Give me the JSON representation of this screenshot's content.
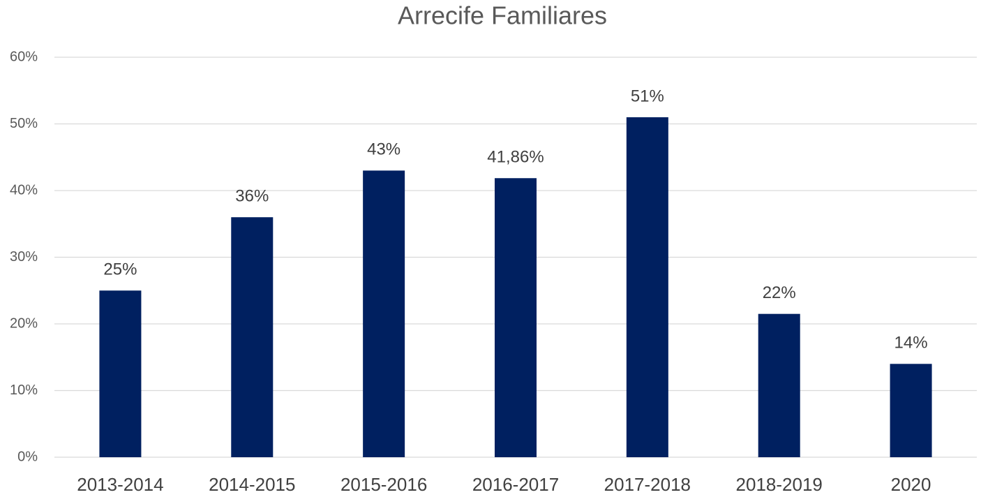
{
  "chart_data": {
    "type": "bar",
    "title": "Arrecife Familiares",
    "categories": [
      "2013-2014",
      "2014-2015",
      "2015-2016",
      "2016-2017",
      "2017-2018",
      "2018-2019",
      "2020"
    ],
    "values": [
      25,
      36,
      43,
      41.86,
      51,
      21.5,
      14
    ],
    "value_labels": [
      "25%",
      "36%",
      "43%",
      "41,86%",
      "51%",
      "22%",
      "14%"
    ],
    "color": "#002060",
    "ylim": [
      0,
      60
    ],
    "yticks": [
      {
        "value": 0,
        "label": "0%"
      },
      {
        "value": 10,
        "label": "10%"
      },
      {
        "value": 20,
        "label": "20%"
      },
      {
        "value": 30,
        "label": "30%"
      },
      {
        "value": 40,
        "label": "40%"
      },
      {
        "value": 50,
        "label": "50%"
      },
      {
        "value": 60,
        "label": "60%"
      }
    ],
    "grid": true
  }
}
